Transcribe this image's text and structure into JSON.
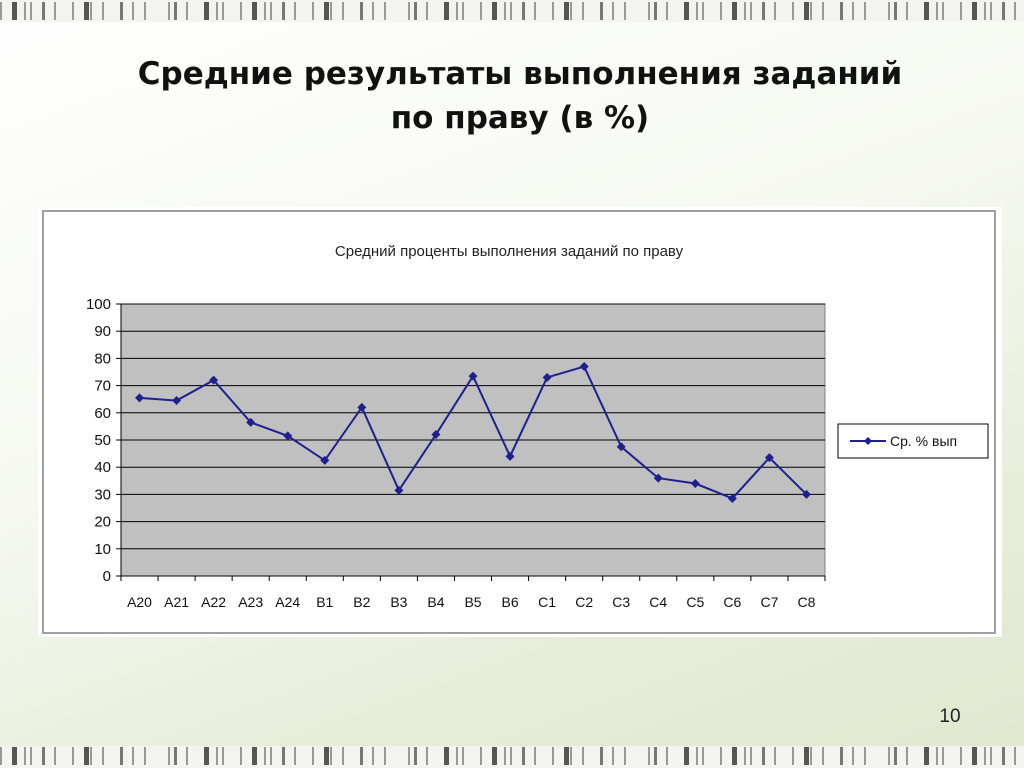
{
  "slide": {
    "title_line1": "Средние результаты выполнения заданий",
    "title_line2": "по праву (в %)",
    "page_number": "10"
  },
  "colors": {
    "series": "#1f1f8f",
    "plot_bg": "#c0c0c0",
    "grid": "#000000"
  },
  "chart_data": {
    "type": "line",
    "title": "Средний проценты выполнения заданий по праву",
    "categories": [
      "A20",
      "A21",
      "A22",
      "A23",
      "A24",
      "B1",
      "B2",
      "B3",
      "B4",
      "B5",
      "B6",
      "C1",
      "C2",
      "C3",
      "C4",
      "C5",
      "C6",
      "C7",
      "C8"
    ],
    "series": [
      {
        "name": "Ср. % вып",
        "values": [
          65.5,
          64.5,
          72,
          56.5,
          51.5,
          42.5,
          62,
          31.5,
          52,
          73.5,
          44,
          73,
          77,
          47.5,
          36,
          34,
          28.5,
          43.5,
          30
        ]
      }
    ],
    "ylim": [
      0,
      100
    ],
    "yticks": [
      "0",
      "10",
      "20",
      "30",
      "40",
      "50",
      "60",
      "70",
      "80",
      "90",
      "100"
    ],
    "grid": true,
    "legend": "right",
    "marker": "diamond"
  }
}
